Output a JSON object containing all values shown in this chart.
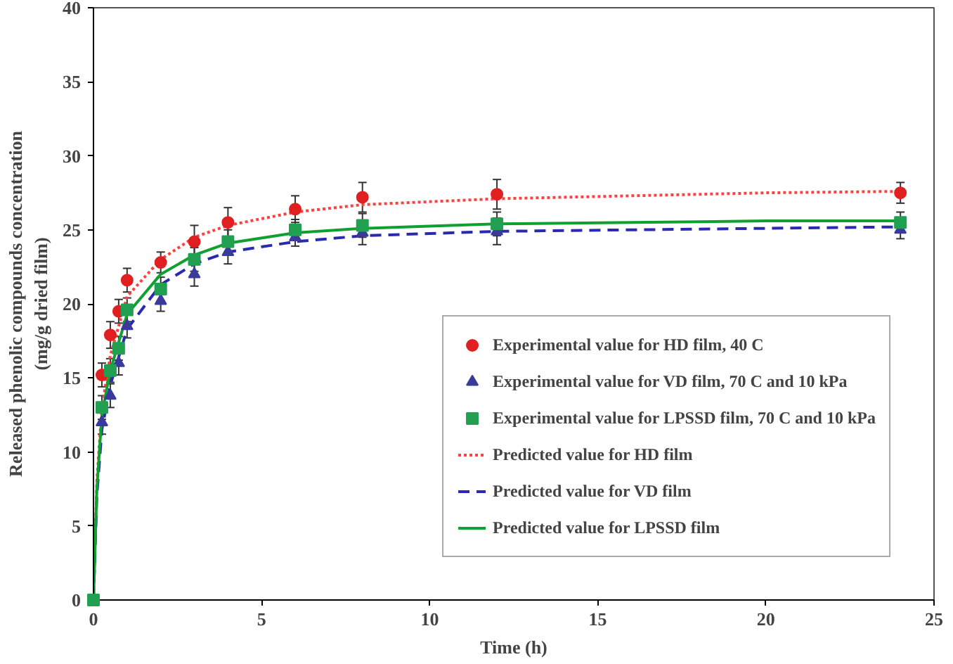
{
  "chart_data": {
    "type": "scatter",
    "xlabel": "Time (h)",
    "ylabel": "Released phenolic compounds concentration\n(mg/g dried film)",
    "xlim": [
      0,
      25
    ],
    "ylim": [
      0,
      40
    ],
    "xticks": [
      0,
      5,
      10,
      15,
      20,
      25
    ],
    "yticks": [
      0,
      5,
      10,
      15,
      20,
      25,
      30,
      35,
      40
    ],
    "grid": false,
    "legend": "bottom right",
    "series": [
      {
        "name": "Experimental value for HD film, 40 C",
        "marker": "circle",
        "color": "#e02020",
        "x": [
          0.25,
          0.5,
          0.75,
          1,
          2,
          3,
          4,
          6,
          8,
          12,
          24
        ],
        "values": [
          15.2,
          17.9,
          19.5,
          21.6,
          22.8,
          24.2,
          25.5,
          26.4,
          27.2,
          27.4,
          27.5
        ],
        "errors": [
          0.8,
          0.9,
          0.8,
          0.8,
          0.7,
          1.1,
          1,
          0.9,
          1,
          1,
          0.7
        ]
      },
      {
        "name": "Experimental value for VD film, 70 C and 10 kPa",
        "marker": "triangle",
        "color": "#3a3a9a",
        "x": [
          0.25,
          0.5,
          0.75,
          1,
          2,
          3,
          4,
          6,
          8,
          12,
          24
        ],
        "values": [
          12,
          13.8,
          16,
          18.5,
          20.2,
          22,
          23.5,
          24.5,
          24.8,
          24.9,
          25
        ],
        "errors": [
          0.8,
          0.8,
          0.8,
          0.8,
          0.7,
          0.8,
          0.8,
          0.6,
          0.8,
          0.9,
          0.6
        ]
      },
      {
        "name": "Experimental value for LPSSD film, 70 C and 10 kPa",
        "marker": "square",
        "color": "#20a050",
        "x": [
          0,
          0.25,
          0.5,
          0.75,
          1,
          2,
          3,
          4,
          6,
          8,
          12,
          24
        ],
        "values": [
          0,
          13,
          15.5,
          17,
          19.6,
          21,
          23,
          24.2,
          25,
          25.3,
          25.4,
          25.5
        ],
        "errors": [
          null,
          0.8,
          0.8,
          0.8,
          0.8,
          0.8,
          0.8,
          0.8,
          0.7,
          0.8,
          0.8,
          0.7
        ]
      },
      {
        "name": "Predicted value for HD film",
        "type": "line",
        "line_style": "dotted",
        "color": "#ff4040",
        "x": [
          0,
          0.1,
          0.25,
          0.5,
          1,
          2,
          3,
          4,
          6,
          8,
          12,
          16,
          20,
          24
        ],
        "values": [
          0,
          8,
          13,
          16.5,
          20.5,
          23,
          24.5,
          25.3,
          26.2,
          26.7,
          27.1,
          27.3,
          27.5,
          27.6
        ]
      },
      {
        "name": "Predicted value for VD film",
        "type": "line",
        "line_style": "dashed",
        "color": "#2a2ab0",
        "x": [
          0,
          0.1,
          0.25,
          0.5,
          1,
          2,
          3,
          4,
          6,
          8,
          12,
          16,
          20,
          24
        ],
        "values": [
          0,
          7,
          11.5,
          14.5,
          18.3,
          21.3,
          22.7,
          23.5,
          24.2,
          24.6,
          24.9,
          25,
          25.1,
          25.2
        ]
      },
      {
        "name": "Predicted value for LPSSD film",
        "type": "line",
        "line_style": "solid",
        "color": "#10a030",
        "x": [
          0,
          0.1,
          0.25,
          0.5,
          1,
          2,
          3,
          4,
          6,
          8,
          12,
          16,
          20,
          24
        ],
        "values": [
          0,
          7.5,
          12.5,
          15.5,
          19.3,
          22,
          23.3,
          24.1,
          24.8,
          25.1,
          25.4,
          25.5,
          25.6,
          25.6
        ]
      }
    ]
  }
}
